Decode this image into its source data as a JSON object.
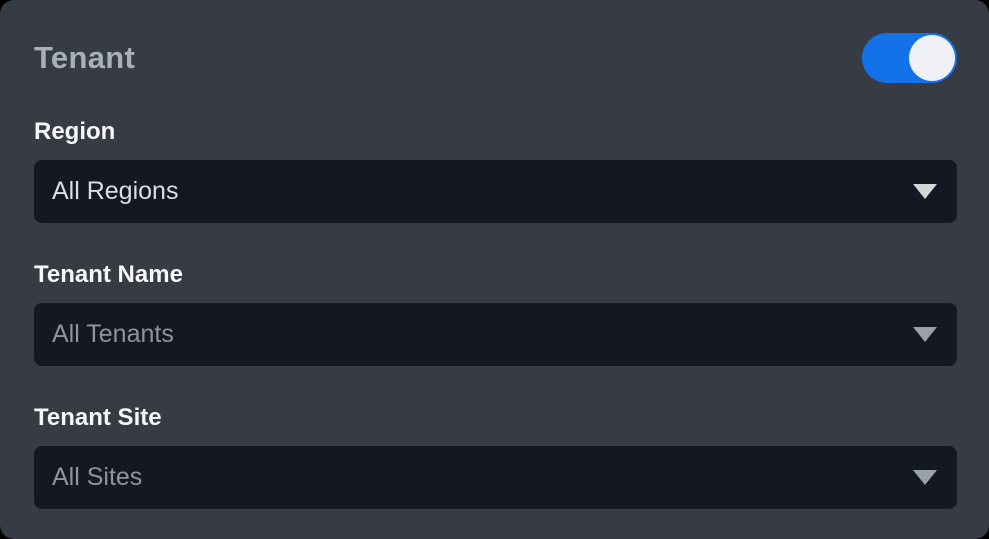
{
  "panel": {
    "title": "Tenant",
    "toggle": {
      "state": "on"
    }
  },
  "fields": [
    {
      "label": "Region",
      "value": "All Regions",
      "muted": false
    },
    {
      "label": "Tenant Name",
      "value": "All Tenants",
      "muted": true
    },
    {
      "label": "Tenant Site",
      "value": "All Sites",
      "muted": true
    }
  ],
  "icons": {
    "caret": "caret-down-icon"
  },
  "colors": {
    "panel_bg": "#373b43",
    "select_bg": "#141822",
    "accent_blue": "#1372e8",
    "title_text": "#a9b0b8",
    "label_text": "#f6f7f8",
    "value_text": "#dcdfe2",
    "muted_text": "#8e959e",
    "knob": "#eef0f3"
  }
}
